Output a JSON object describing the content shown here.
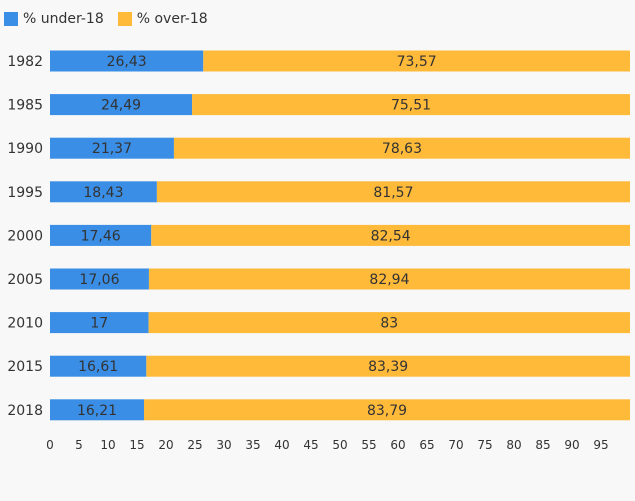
{
  "chart_data": {
    "type": "bar",
    "orientation": "horizontal",
    "stacked": true,
    "categories": [
      "1982",
      "1985",
      "1990",
      "1995",
      "2000",
      "2005",
      "2010",
      "2015",
      "2018"
    ],
    "series": [
      {
        "name": "% under-18",
        "color": "#3a8ee6",
        "values": [
          26.43,
          24.49,
          21.37,
          18.43,
          17.46,
          17.06,
          17,
          16.61,
          16.21
        ],
        "labels": [
          "26,43",
          "24,49",
          "21,37",
          "18,43",
          "17,46",
          "17,06",
          "17",
          "16,61",
          "16,21"
        ]
      },
      {
        "name": "% over-18",
        "color": "#ffba3a",
        "values": [
          73.57,
          75.51,
          78.63,
          81.57,
          82.54,
          82.94,
          83,
          83.39,
          83.79
        ],
        "labels": [
          "73,57",
          "75,51",
          "78,63",
          "81,57",
          "82,54",
          "82,94",
          "83",
          "83,39",
          "83,79"
        ]
      }
    ],
    "xlim": [
      0,
      100
    ],
    "xticks": [
      0,
      5,
      10,
      15,
      20,
      25,
      30,
      35,
      40,
      45,
      50,
      55,
      60,
      65,
      70,
      75,
      80,
      85,
      90,
      95
    ],
    "grid": false,
    "legend_position": "top-left",
    "title": "",
    "xlabel": "",
    "ylabel": ""
  }
}
